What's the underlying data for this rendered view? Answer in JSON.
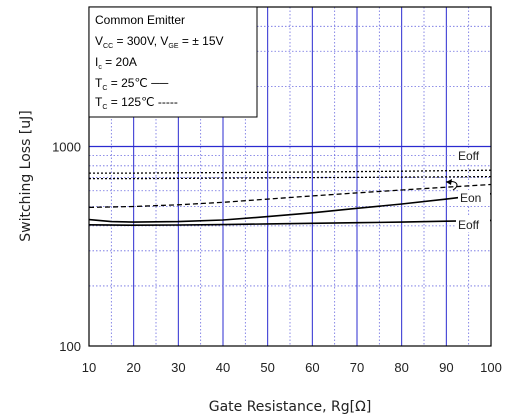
{
  "chart_data": {
    "type": "line",
    "title": "",
    "xlabel": "Gate Resistance, Rg[Ω]",
    "ylabel": "Switching Loss [uJ]",
    "xlim": [
      10,
      100
    ],
    "ylim": [
      100,
      5000
    ],
    "yscale": "log",
    "grid": true,
    "x_ticks": [
      10,
      20,
      30,
      40,
      50,
      60,
      70,
      80,
      90,
      100
    ],
    "y_ticks": [
      100,
      1000
    ],
    "x_tick_labels": [
      "10",
      "20",
      "30",
      "40",
      "50",
      "60",
      "70",
      "80",
      "90",
      "100"
    ],
    "y_tick_labels": [
      "100",
      "1000"
    ],
    "conditions": {
      "line1_main": "Common Emitter",
      "line2_vcc_main": "V",
      "line2_vcc_sub": "CC",
      "line2_vcc_rest": " = 300V, V",
      "line2_vge_sub": "GE",
      "line2_vge_rest": " = ± 15V",
      "line3_ic_main": "I",
      "line3_ic_sub": "c",
      "line3_ic_rest": " = 20A",
      "line4_tc_main": "T",
      "line4_tc_sub": "C",
      "line4_tc_rest": " =  25℃ ──",
      "line5_tc_main": "T",
      "line5_tc_sub": "C",
      "line5_tc_rest": " = 125℃ -----"
    },
    "series": [
      {
        "label": "Eoff",
        "style": "dotted",
        "x": [
          10,
          20,
          30,
          40,
          50,
          60,
          70,
          80,
          90,
          100
        ],
        "y": [
          735,
          735,
          738,
          740,
          742,
          745,
          748,
          752,
          756,
          760
        ]
      },
      {
        "label": "Eon",
        "style": "dashed",
        "x": [
          10,
          20,
          30,
          40,
          50,
          60,
          70,
          80,
          90,
          100
        ],
        "y": [
          495,
          500,
          510,
          525,
          545,
          565,
          585,
          605,
          625,
          645
        ]
      },
      {
        "label": "Eoff",
        "style": "dotted",
        "x": [
          10,
          20,
          30,
          40,
          50,
          60,
          70,
          80,
          90,
          100
        ],
        "y": [
          690,
          690,
          692,
          694,
          696,
          698,
          700,
          702,
          704,
          706
        ]
      },
      {
        "label": "Eon",
        "style": "solid",
        "x": [
          10,
          15,
          20,
          30,
          40,
          50,
          60,
          70,
          80,
          90,
          100
        ],
        "y": [
          430,
          420,
          418,
          420,
          428,
          445,
          465,
          490,
          515,
          545,
          580
        ]
      },
      {
        "label": "Eoff",
        "style": "solid",
        "x": [
          10,
          20,
          30,
          40,
          50,
          60,
          70,
          80,
          90,
          100
        ],
        "y": [
          405,
          403,
          404,
          406,
          409,
          412,
          415,
          418,
          422,
          426
        ]
      }
    ],
    "annotations": [
      "Eoff",
      "Eon",
      "Eoff"
    ],
    "colors": {
      "grid_major": "#2b2bd0",
      "grid_minor": "#6b6be0",
      "curve": "#000000"
    }
  }
}
